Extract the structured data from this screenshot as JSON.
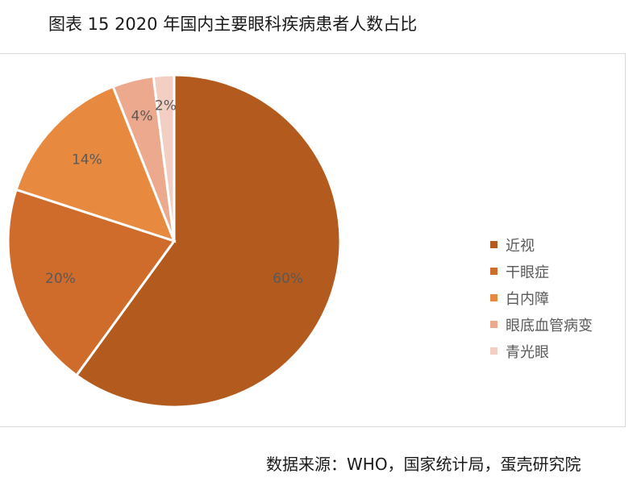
{
  "title": "图表 15 2020 年国内主要眼科疾病患者人数占比",
  "source": "数据来源：WHO，国家统计局，蛋壳研究院",
  "chart_data": {
    "type": "pie",
    "title": "图表 15 2020 年国内主要眼科疾病患者人数占比",
    "legend_position": "right",
    "categories": [
      "近视",
      "干眼症",
      "白内障",
      "眼底血管病变",
      "青光眼"
    ],
    "values": [
      60,
      20,
      14,
      4,
      2
    ],
    "data_labels": [
      "60%",
      "20%",
      "14%",
      "4%",
      "2%"
    ],
    "colors": [
      "#B35A1F",
      "#D06C2B",
      "#E78A3F",
      "#EDA98D",
      "#F2CFC2"
    ]
  }
}
